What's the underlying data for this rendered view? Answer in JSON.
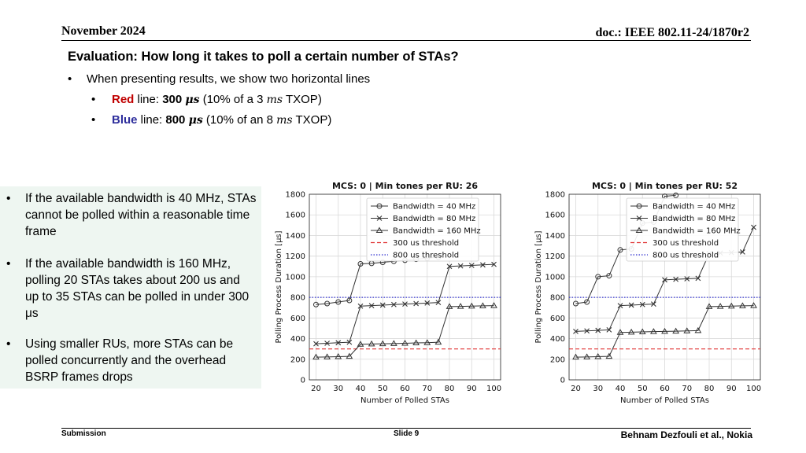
{
  "header": {
    "date": "November 2024",
    "doc": "doc.: IEEE 802.11-24/1870r2"
  },
  "title": "Evaluation: How long it takes to poll a certain number of STAs?",
  "bullets": {
    "main": "When presenting results, we show two horizontal lines",
    "red": {
      "color_word": "Red",
      "line_word": " line: ",
      "value": "300",
      "unit": "μs",
      "rest_a": " (10% of a 3 ",
      "rest_unit": "ms",
      "rest_b": " TXOP)"
    },
    "blue": {
      "color_word": "Blue",
      "line_word": " line: ",
      "value": "800",
      "unit": "μs",
      "rest_a": " (10% of an 8 ",
      "rest_unit": "ms",
      "rest_b": " TXOP)"
    }
  },
  "sidebar": {
    "items": [
      "If the available bandwidth is 40 MHz, STAs cannot be polled within a reasonable time frame",
      "If the available bandwidth is 160 MHz, polling 20 STAs takes about 200 us and up to 35 STAs can be polled in under 300 μs",
      "Using smaller RUs, more STAs can be polled concurrently and the overhead BSRP frames drops"
    ]
  },
  "chart_data": [
    {
      "type": "line",
      "title": "MCS: 0 | Min tones per RU: 26",
      "xlabel": "Number of Polled STAs",
      "ylabel": "Polling Process Duration [μs]",
      "x": [
        20,
        25,
        30,
        35,
        40,
        45,
        50,
        55,
        60,
        65,
        70,
        75,
        80,
        85,
        90,
        95,
        100
      ],
      "xticks": [
        20,
        30,
        40,
        50,
        60,
        70,
        80,
        90,
        100
      ],
      "yticks": [
        0,
        200,
        400,
        600,
        800,
        1000,
        1200,
        1400,
        1600,
        1800
      ],
      "xlim": [
        17,
        103
      ],
      "ylim": [
        0,
        1800
      ],
      "grid": true,
      "legend": "top-center",
      "series": [
        {
          "name": "Bandwidth = 40 MHz",
          "marker": "circle",
          "color": "#333333",
          "values": [
            730,
            740,
            755,
            770,
            1125,
            1130,
            1140,
            1150,
            1160,
            1170,
            1180,
            1190,
            null,
            null,
            null,
            null,
            null
          ]
        },
        {
          "name": "Bandwidth = 80 MHz",
          "marker": "x",
          "color": "#333333",
          "values": [
            350,
            355,
            360,
            365,
            715,
            720,
            725,
            730,
            735,
            740,
            745,
            750,
            1100,
            1105,
            1110,
            1115,
            1120
          ]
        },
        {
          "name": "Bandwidth = 160 MHz",
          "marker": "triangle",
          "color": "#333333",
          "values": [
            220,
            222,
            225,
            228,
            345,
            348,
            350,
            352,
            355,
            358,
            360,
            365,
            710,
            712,
            715,
            718,
            720
          ]
        }
      ],
      "thresholds": [
        {
          "name": "300 us threshold",
          "value": 300,
          "color": "#e03030",
          "style": "dashed"
        },
        {
          "name": "800 us threshold",
          "value": 800,
          "color": "#3030d0",
          "style": "dotted"
        }
      ]
    },
    {
      "type": "line",
      "title": "MCS: 0 | Min tones per RU: 52",
      "xlabel": "Number of Polled STAs",
      "ylabel": "Polling Process Duration [μs]",
      "x": [
        20,
        25,
        30,
        35,
        40,
        45,
        50,
        55,
        60,
        65,
        70,
        75,
        80,
        85,
        90,
        95,
        100
      ],
      "xticks": [
        20,
        30,
        40,
        50,
        60,
        70,
        80,
        90,
        100
      ],
      "yticks": [
        0,
        200,
        400,
        600,
        800,
        1000,
        1200,
        1400,
        1600,
        1800
      ],
      "xlim": [
        17,
        103
      ],
      "ylim": [
        0,
        1800
      ],
      "grid": true,
      "legend": "top-center",
      "series": [
        {
          "name": "Bandwidth = 40 MHz",
          "marker": "circle",
          "color": "#333333",
          "values": [
            740,
            755,
            1000,
            1010,
            1260,
            1270,
            1520,
            1530,
            1780,
            1790,
            null,
            null,
            null,
            null,
            null,
            null,
            null
          ]
        },
        {
          "name": "Bandwidth = 80 MHz",
          "marker": "x",
          "color": "#333333",
          "values": [
            470,
            475,
            480,
            485,
            720,
            725,
            730,
            735,
            970,
            975,
            980,
            985,
            1225,
            1230,
            1235,
            1240,
            1480
          ]
        },
        {
          "name": "Bandwidth = 160 MHz",
          "marker": "triangle",
          "color": "#333333",
          "values": [
            220,
            222,
            225,
            228,
            460,
            462,
            465,
            468,
            470,
            472,
            475,
            478,
            710,
            712,
            715,
            718,
            720
          ]
        }
      ],
      "thresholds": [
        {
          "name": "300 us threshold",
          "value": 300,
          "color": "#e03030",
          "style": "dashed"
        },
        {
          "name": "800 us threshold",
          "value": 800,
          "color": "#3030d0",
          "style": "dotted"
        }
      ]
    }
  ],
  "footer": {
    "left": "Submission",
    "mid": "Slide 9",
    "right": "Behnam Dezfouli et al., Nokia"
  }
}
